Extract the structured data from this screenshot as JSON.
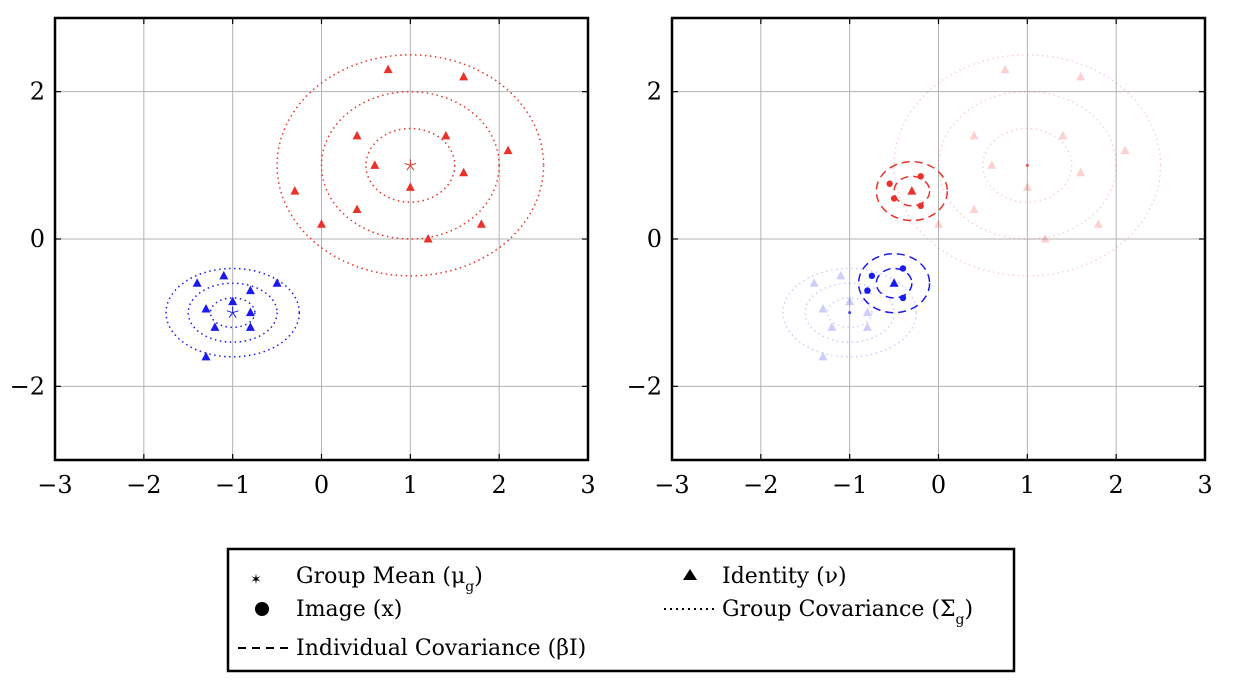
{
  "colors": {
    "red": "#e8322a",
    "blue": "#1a1aee",
    "grid": "#b3b3b3",
    "axis": "#000000"
  },
  "chart_data": [
    {
      "type": "scatter",
      "title": "",
      "xlabel": "",
      "ylabel": "",
      "xlim": [
        -3,
        3
      ],
      "ylim": [
        -3,
        3
      ],
      "xticks": [
        "−3",
        "−2",
        "−1",
        "0",
        "1",
        "2",
        "3"
      ],
      "yticks": [
        "−2",
        "0",
        "2"
      ],
      "grid": "major ticks on",
      "groups": [
        {
          "color": "red",
          "mean": [
            1,
            1
          ],
          "covariance_ellipses": [
            {
              "rx": 0.5,
              "ry": 0.5
            },
            {
              "rx": 1.0,
              "ry": 1.0
            },
            {
              "rx": 1.5,
              "ry": 1.5
            }
          ],
          "identities": [
            [
              0.75,
              2.3
            ],
            [
              1.6,
              2.2
            ],
            [
              0.4,
              1.4
            ],
            [
              1.4,
              1.4
            ],
            [
              2.1,
              1.2
            ],
            [
              0.6,
              1.0
            ],
            [
              1.6,
              0.9
            ],
            [
              1.0,
              0.7
            ],
            [
              -0.3,
              0.65
            ],
            [
              0.4,
              0.4
            ],
            [
              0.0,
              0.2
            ],
            [
              1.8,
              0.2
            ],
            [
              1.2,
              0.0
            ]
          ]
        },
        {
          "color": "blue",
          "mean": [
            -1,
            -1
          ],
          "covariance_ellipses": [
            {
              "rx": 0.25,
              "ry": 0.2
            },
            {
              "rx": 0.5,
              "ry": 0.4
            },
            {
              "rx": 0.75,
              "ry": 0.6
            }
          ],
          "identities": [
            [
              -1.1,
              -0.5
            ],
            [
              -1.4,
              -0.6
            ],
            [
              -0.5,
              -0.6
            ],
            [
              -0.8,
              -0.7
            ],
            [
              -1.0,
              -0.85
            ],
            [
              -1.3,
              -0.95
            ],
            [
              -0.8,
              -1.0
            ],
            [
              -1.2,
              -1.2
            ],
            [
              -0.8,
              -1.2
            ],
            [
              -1.3,
              -1.6
            ]
          ]
        }
      ]
    },
    {
      "type": "scatter",
      "title": "",
      "xlabel": "",
      "ylabel": "",
      "xlim": [
        -3,
        3
      ],
      "ylim": [
        -3,
        3
      ],
      "xticks": [
        "−3",
        "−2",
        "−1",
        "0",
        "1",
        "2",
        "3"
      ],
      "yticks": [
        "−2",
        "0",
        "2"
      ],
      "grid": "major ticks on",
      "faded_background": "group structure from left panel shown faded",
      "individuals": [
        {
          "color": "red",
          "identity": [
            -0.3,
            0.65
          ],
          "individual_covariance_ellipses": [
            {
              "rx": 0.2,
              "ry": 0.2
            },
            {
              "rx": 0.4,
              "ry": 0.4
            }
          ],
          "images": [
            [
              -0.55,
              0.75
            ],
            [
              -0.2,
              0.85
            ],
            [
              -0.5,
              0.55
            ],
            [
              -0.2,
              0.45
            ]
          ]
        },
        {
          "color": "blue",
          "identity": [
            -0.5,
            -0.6
          ],
          "individual_covariance_ellipses": [
            {
              "rx": 0.2,
              "ry": 0.2
            },
            {
              "rx": 0.4,
              "ry": 0.4
            }
          ],
          "images": [
            [
              -0.75,
              -0.5
            ],
            [
              -0.4,
              -0.4
            ],
            [
              -0.8,
              -0.7
            ],
            [
              -0.4,
              -0.8
            ]
          ]
        }
      ]
    }
  ],
  "legend": {
    "placement": "bottom-center",
    "entries": [
      {
        "symbol": "star",
        "label": "Group Mean (μ",
        "sub": "g",
        "tail": ")"
      },
      {
        "symbol": "triangle",
        "label": "Identity (ν)",
        "sub": "",
        "tail": ""
      },
      {
        "symbol": "circle",
        "label": "Image (x)",
        "sub": "",
        "tail": ""
      },
      {
        "symbol": "dotted",
        "label": "Group Covariance (Σ",
        "sub": "g",
        "tail": ")"
      },
      {
        "symbol": "dashed",
        "label": "Individual Covariance (βI)",
        "sub": "",
        "tail": ""
      }
    ]
  }
}
